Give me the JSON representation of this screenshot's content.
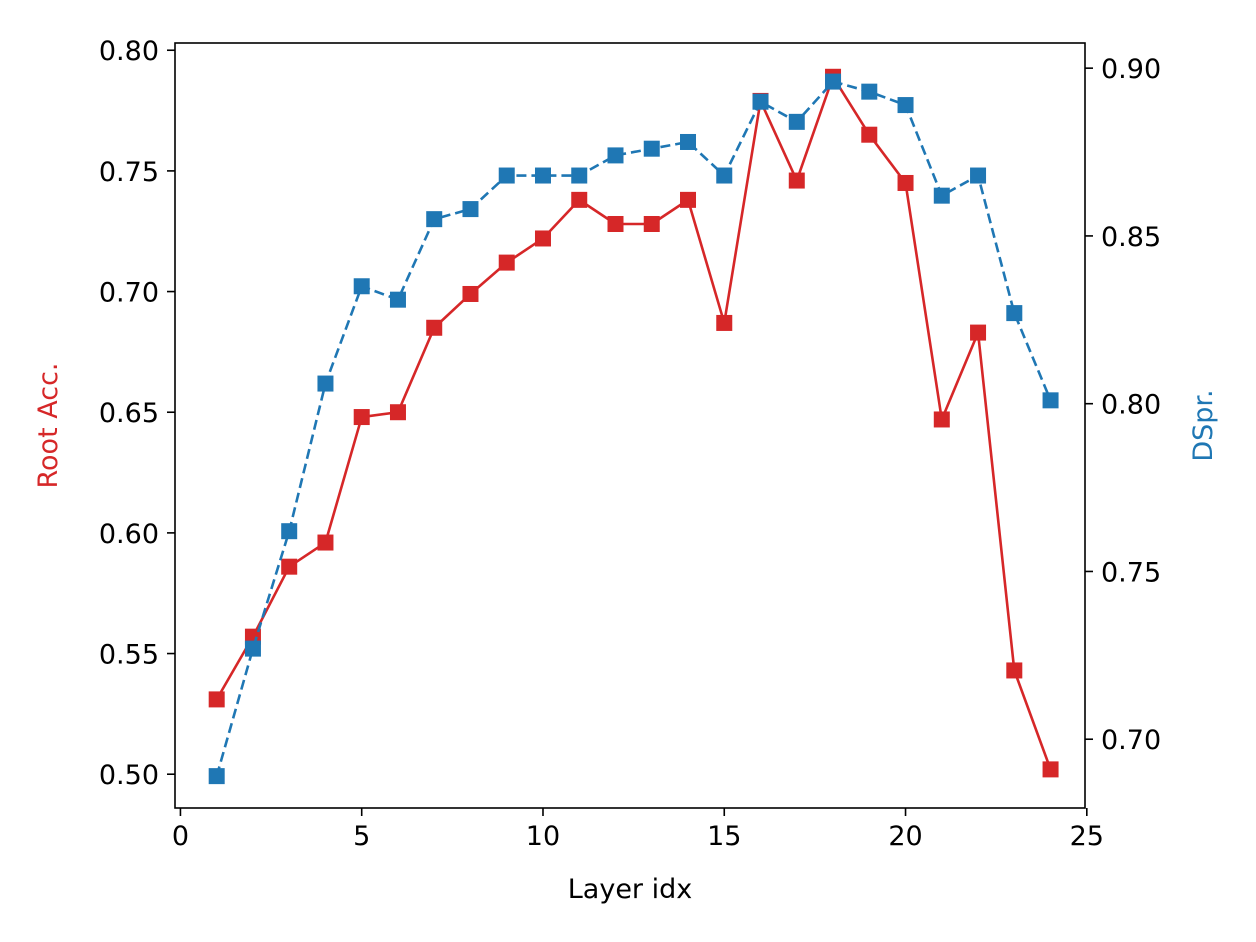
{
  "chart_data": {
    "type": "line",
    "title": "",
    "xlabel": "Layer idx",
    "ylabel": "Root Acc.",
    "y2label": "DSpr.",
    "xlim": [
      -0.15,
      24.95
    ],
    "ylim": [
      0.486,
      0.803
    ],
    "y2lim": [
      0.6795,
      0.9075
    ],
    "xticks": [
      0,
      5,
      10,
      15,
      20,
      25
    ],
    "yticks": [
      0.5,
      0.55,
      0.6,
      0.65,
      0.7,
      0.75,
      0.8
    ],
    "y2ticks": [
      0.7,
      0.75,
      0.8,
      0.85,
      0.9
    ],
    "grid": false,
    "legend": "none",
    "x": [
      1,
      2,
      3,
      4,
      5,
      6,
      7,
      8,
      9,
      10,
      11,
      12,
      13,
      14,
      15,
      16,
      17,
      18,
      19,
      20,
      21,
      22,
      23,
      24
    ],
    "series": [
      {
        "axis": "left",
        "color": "#d62728",
        "style": "solid",
        "marker": "square",
        "values": [
          0.531,
          0.557,
          0.586,
          0.596,
          0.648,
          0.65,
          0.685,
          0.699,
          0.712,
          0.722,
          0.738,
          0.728,
          0.728,
          0.738,
          0.687,
          0.779,
          0.746,
          0.789,
          0.765,
          0.745,
          0.647,
          0.683,
          0.543,
          0.502
        ]
      },
      {
        "axis": "right",
        "color": "#1f77b4",
        "style": "dashed",
        "marker": "square",
        "values": [
          0.689,
          0.727,
          0.762,
          0.806,
          0.835,
          0.831,
          0.855,
          0.858,
          0.868,
          0.868,
          0.868,
          0.874,
          0.876,
          0.878,
          0.868,
          0.89,
          0.884,
          0.896,
          0.893,
          0.889,
          0.862,
          0.868,
          0.827,
          0.801
        ]
      }
    ]
  }
}
